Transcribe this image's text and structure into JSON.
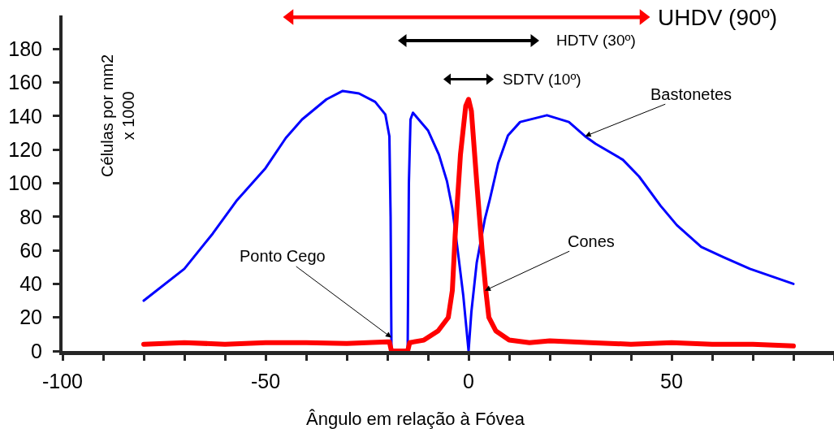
{
  "chart_data": {
    "type": "line",
    "xlabel": "Ângulo em relação à Fóvea",
    "ylabel": "Células por mm2\nx 1000",
    "xlim": [
      -100,
      90
    ],
    "xticks": [
      -100,
      {
        "value": -90,
        "label": null
      },
      {
        "value": -80,
        "label": null
      },
      {
        "value": -70,
        "label": null
      },
      {
        "value": -60,
        "label": null
      },
      -50,
      {
        "value": -40,
        "label": null
      },
      {
        "value": -30,
        "label": null
      },
      {
        "value": -20,
        "label": null
      },
      {
        "value": -10,
        "label": null
      },
      0,
      {
        "value": 10,
        "label": null
      },
      {
        "value": 20,
        "label": null
      },
      {
        "value": 30,
        "label": null
      },
      {
        "value": 40,
        "label": null
      },
      50,
      {
        "value": 60,
        "label": null
      },
      {
        "value": 70,
        "label": null
      },
      {
        "value": 80,
        "label": null
      },
      {
        "value": 90,
        "label": null
      }
    ],
    "ylim": [
      0,
      200
    ],
    "yticks": [
      0,
      20,
      40,
      60,
      80,
      100,
      120,
      140,
      160,
      180
    ],
    "grid": false,
    "marker": "none",
    "series": [
      {
        "color": "#0000ff",
        "x": [
          -80,
          -70,
          -63,
          -57,
          -50,
          -45,
          -41,
          -35,
          -31,
          -27,
          -23,
          -20.5,
          -19.5,
          -19.2,
          -19,
          -19,
          -15,
          -14.7,
          -14.3,
          -13.7,
          -10,
          -7.3,
          -5.3,
          -4,
          -2.7,
          -1.3,
          0,
          0.7,
          2,
          4,
          5.3,
          7.3,
          9.7,
          12.7,
          19.3,
          24.7,
          28.7,
          31.3,
          38,
          42,
          47.3,
          51.3,
          57.3,
          62.7,
          69.3,
          80
        ],
        "values": [
          30,
          49,
          70,
          90,
          109,
          127,
          138,
          150,
          155,
          153.5,
          148.5,
          141,
          128,
          80,
          5,
          0,
          0,
          100,
          138,
          142,
          131.5,
          117,
          101,
          85,
          60.5,
          33,
          0,
          23.5,
          52.5,
          78.5,
          91,
          112,
          128.5,
          136.5,
          140.5,
          136.5,
          128,
          123.5,
          114,
          104,
          86.5,
          75,
          62,
          56,
          49,
          40
        ]
      },
      {
        "color": "#ff0000",
        "x": [
          -80,
          -70,
          -60,
          -50,
          -40,
          -30,
          -20,
          -19.5,
          -19,
          -15,
          -14.5,
          -11,
          -7.5,
          -5,
          -4,
          -3.3,
          -2,
          -0.7,
          0,
          0.7,
          2,
          3.3,
          4.3,
          5,
          6.7,
          10,
          15,
          20,
          30,
          40,
          50,
          60,
          70,
          80
        ],
        "values": [
          4,
          5,
          4,
          5,
          5,
          4.5,
          5.5,
          5.5,
          0,
          0,
          5,
          6.5,
          12,
          20,
          36,
          69,
          117,
          146,
          150,
          143,
          101,
          61,
          35,
          20,
          12,
          6.5,
          5,
          6,
          5,
          4,
          5,
          4,
          4,
          3
        ]
      },
      {
        "color": "#ff0000",
        "x": [
          -44,
          43
        ],
        "values": [
          199,
          199
        ],
        "marker": "triangle"
      },
      {
        "color": "#000000",
        "x": [
          -16,
          16
        ],
        "values": [
          185,
          185
        ],
        "marker": "triangle"
      },
      {
        "color": "#000000",
        "x": [
          -5,
          5
        ],
        "values": [
          162,
          162
        ],
        "marker": "triangle"
      }
    ],
    "annotations": [
      {
        "text": "UHDV (90º)",
        "x": 43,
        "y": 199
      },
      {
        "text": "HDTV (30º)",
        "x": 16,
        "y": 185
      },
      {
        "text": "SDTV (10º)",
        "x": 5,
        "y": 162
      },
      {
        "text": "Bastonetes",
        "x": 28.7,
        "y": 128
      },
      {
        "text": "Ponto Cego",
        "x": -19,
        "y": 8
      },
      {
        "text": "Cones",
        "x": 4,
        "y": 36
      }
    ]
  }
}
